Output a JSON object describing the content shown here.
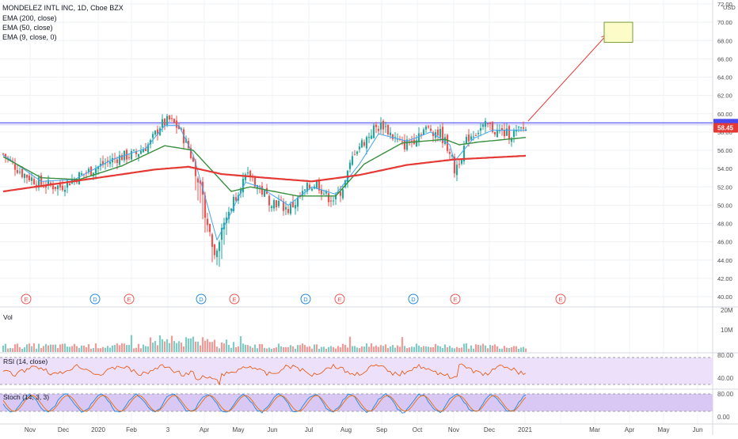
{
  "header": {
    "symbol_line": "MONDELEZ INTL INC, 1D, Cboe BZX",
    "indicators": [
      "EMA (200, close)",
      "EMA (50, close)",
      "EMA (9, close, 0)"
    ]
  },
  "currency": "USD",
  "last_price_label": "58.45",
  "colors": {
    "up": "#26a69a",
    "down": "#ef5350",
    "ema200": "#e53935",
    "ema50": "#388e3c",
    "ema9": "#42a5f5",
    "resistance": "#4a4af0",
    "arrow": "#e53935",
    "rsi_bg": "#ede0fb",
    "stoch_bg": "#d8c8f3",
    "target_box": "#fcfcc8",
    "price_tag": "#e53935"
  },
  "earnings_markers": [
    "E",
    "D",
    "E",
    "D",
    "E",
    "D",
    "E",
    "D",
    "E",
    "E"
  ],
  "panes": {
    "volume": {
      "label": "Vol",
      "ticks": [
        "20M",
        "10M"
      ]
    },
    "rsi": {
      "label": "RSI (14, close)",
      "ticks": [
        "80.00",
        "40.00"
      ]
    },
    "stoch": {
      "label": "Stoch (14, 3, 3)",
      "ticks": [
        "80.00",
        "0.00"
      ]
    }
  },
  "x_axis_labels": [
    "Nov",
    "Dec",
    "2020",
    "Feb",
    "3",
    "Apr",
    "May",
    "Jun",
    "Jul",
    "Aug",
    "Sep",
    "Oct",
    "Nov",
    "Dec",
    "2021",
    "Mar",
    "Apr",
    "May",
    "Jun"
  ],
  "chart_data": {
    "type": "candlestick",
    "title": "MONDELEZ INTL INC, 1D, Cboe BZX",
    "y_ticks": [
      "72.00",
      "70.00",
      "68.00",
      "66.00",
      "64.00",
      "62.00",
      "60.00",
      "58.00",
      "56.00",
      "54.00",
      "52.00",
      "50.00",
      "48.00",
      "46.00",
      "44.00",
      "42.00",
      "40.00"
    ],
    "ylim": [
      39,
      73.5
    ],
    "x_categories": [
      "Nov",
      "Dec",
      "2020",
      "Feb",
      "3",
      "Apr",
      "May",
      "Jun",
      "Jul",
      "Aug",
      "Sep",
      "Oct",
      "Nov",
      "Dec",
      "2021",
      "Mar",
      "Apr",
      "May",
      "Jun"
    ],
    "close_path": [
      [
        0,
        55.6
      ],
      [
        8,
        53.5
      ],
      [
        16,
        52.3
      ],
      [
        24,
        52.0
      ],
      [
        32,
        53.2
      ],
      [
        40,
        54.2
      ],
      [
        48,
        55.2
      ],
      [
        56,
        55.6
      ],
      [
        62,
        56.8
      ],
      [
        66,
        58.7
      ],
      [
        70,
        59.3
      ],
      [
        74,
        58.4
      ],
      [
        78,
        56.3
      ],
      [
        82,
        53.0
      ],
      [
        86,
        48.0
      ],
      [
        89,
        44.5
      ],
      [
        92,
        47.5
      ],
      [
        96,
        50.0
      ],
      [
        100,
        52.3
      ],
      [
        104,
        53.3
      ],
      [
        108,
        51.8
      ],
      [
        112,
        50.6
      ],
      [
        116,
        50.2
      ],
      [
        120,
        49.5
      ],
      [
        124,
        50.5
      ],
      [
        128,
        51.8
      ],
      [
        132,
        52.5
      ],
      [
        136,
        51.0
      ],
      [
        140,
        50.6
      ],
      [
        144,
        52.5
      ],
      [
        148,
        56.0
      ],
      [
        152,
        57.0
      ],
      [
        156,
        58.3
      ],
      [
        160,
        58.8
      ],
      [
        164,
        57.5
      ],
      [
        168,
        56.5
      ],
      [
        172,
        57.0
      ],
      [
        176,
        58.2
      ],
      [
        180,
        58.3
      ],
      [
        184,
        57.8
      ],
      [
        188,
        56.0
      ],
      [
        190,
        53.8
      ],
      [
        192,
        55.0
      ],
      [
        196,
        57.5
      ],
      [
        200,
        58.2
      ],
      [
        204,
        58.7
      ],
      [
        208,
        58.0
      ],
      [
        212,
        57.8
      ],
      [
        216,
        57.9
      ],
      [
        220,
        58.45
      ]
    ],
    "ema200": [
      [
        0,
        51.5
      ],
      [
        40,
        53.0
      ],
      [
        64,
        53.9
      ],
      [
        78,
        54.2
      ],
      [
        92,
        53.4
      ],
      [
        110,
        53.0
      ],
      [
        130,
        52.6
      ],
      [
        150,
        53.3
      ],
      [
        170,
        54.4
      ],
      [
        190,
        55.0
      ],
      [
        220,
        55.4
      ]
    ],
    "ema50": [
      [
        0,
        55.3
      ],
      [
        16,
        53.0
      ],
      [
        32,
        52.8
      ],
      [
        50,
        54.3
      ],
      [
        68,
        56.5
      ],
      [
        80,
        56.0
      ],
      [
        96,
        51.5
      ],
      [
        104,
        52.0
      ],
      [
        124,
        51.0
      ],
      [
        140,
        51.0
      ],
      [
        152,
        54.5
      ],
      [
        168,
        56.8
      ],
      [
        186,
        57.2
      ],
      [
        192,
        56.6
      ],
      [
        200,
        56.9
      ],
      [
        220,
        57.4
      ]
    ],
    "ema9": [
      [
        0,
        55.5
      ],
      [
        16,
        52.6
      ],
      [
        30,
        52.8
      ],
      [
        46,
        55.0
      ],
      [
        60,
        56.2
      ],
      [
        68,
        58.7
      ],
      [
        74,
        58.7
      ],
      [
        80,
        55.5
      ],
      [
        86,
        50.0
      ],
      [
        90,
        46.2
      ],
      [
        96,
        49.2
      ],
      [
        102,
        52.5
      ],
      [
        108,
        52.0
      ],
      [
        120,
        50.0
      ],
      [
        130,
        52.0
      ],
      [
        140,
        51.2
      ],
      [
        150,
        54.5
      ],
      [
        158,
        57.8
      ],
      [
        170,
        57.0
      ],
      [
        180,
        58.0
      ],
      [
        188,
        56.6
      ],
      [
        190,
        54.8
      ],
      [
        198,
        57.3
      ],
      [
        206,
        58.2
      ],
      [
        220,
        58.2
      ]
    ],
    "resistance": 59.0,
    "projection": {
      "from": [
        221,
        59.2
      ],
      "to": [
        254,
        68.6
      ]
    },
    "target_zone": {
      "x": [
        253,
        265
      ],
      "y": [
        67.8,
        70.0
      ]
    },
    "last_price": 58.45
  }
}
